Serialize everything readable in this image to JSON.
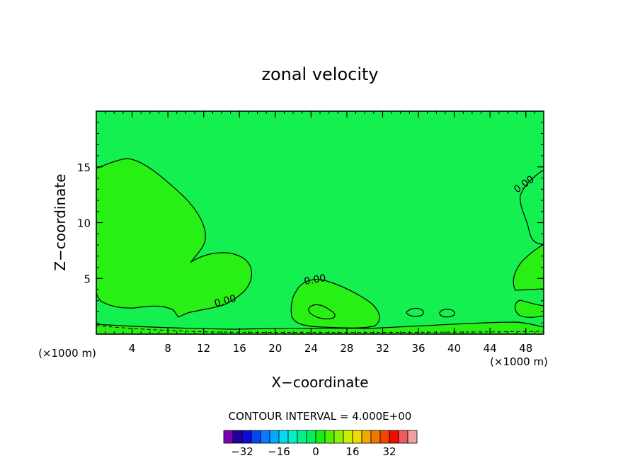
{
  "chart_data": {
    "type": "contour",
    "title": "zonal velocity",
    "xlabel": "X−coordinate",
    "ylabel": "Z−coordinate",
    "x_unit_label": "(×1000 m)",
    "y_unit_label": "(×1000 m)",
    "xlim": [
      0,
      50
    ],
    "ylim": [
      0,
      20
    ],
    "x_ticks": [
      4,
      8,
      12,
      16,
      20,
      24,
      28,
      32,
      36,
      40,
      44,
      48
    ],
    "y_ticks": [
      5,
      10,
      15
    ],
    "contour_labels": [
      {
        "text": "0.00",
        "x": 14.5,
        "y": 2.7
      },
      {
        "text": "0.00",
        "x": 24.5,
        "y": 4.6
      },
      {
        "text": "0.00",
        "x": 48.0,
        "y": 13.2
      }
    ],
    "contour_interval_text": "CONTOUR INTERVAL = 4.000E+00",
    "colorbar": {
      "colors": [
        "#7a00b4",
        "#1e00a0",
        "#0a0adc",
        "#0a46f0",
        "#0a78ff",
        "#00aaff",
        "#00dcf0",
        "#00f0c8",
        "#00f08c",
        "#00f05a",
        "#14f014",
        "#50f000",
        "#8cf000",
        "#c8f000",
        "#f0dc00",
        "#f0aa00",
        "#f07800",
        "#f04600",
        "#f00a00",
        "#f05a5a",
        "#f0a0a0"
      ],
      "tick_labels": [
        "−32",
        "−16",
        "0",
        "16",
        "32"
      ],
      "tick_values": [
        -32,
        -16,
        0,
        16,
        32
      ],
      "range": [
        -40,
        44
      ]
    },
    "background_color": "#14f050",
    "region_color": "#28f014",
    "bottom_color": "#00f08c"
  }
}
